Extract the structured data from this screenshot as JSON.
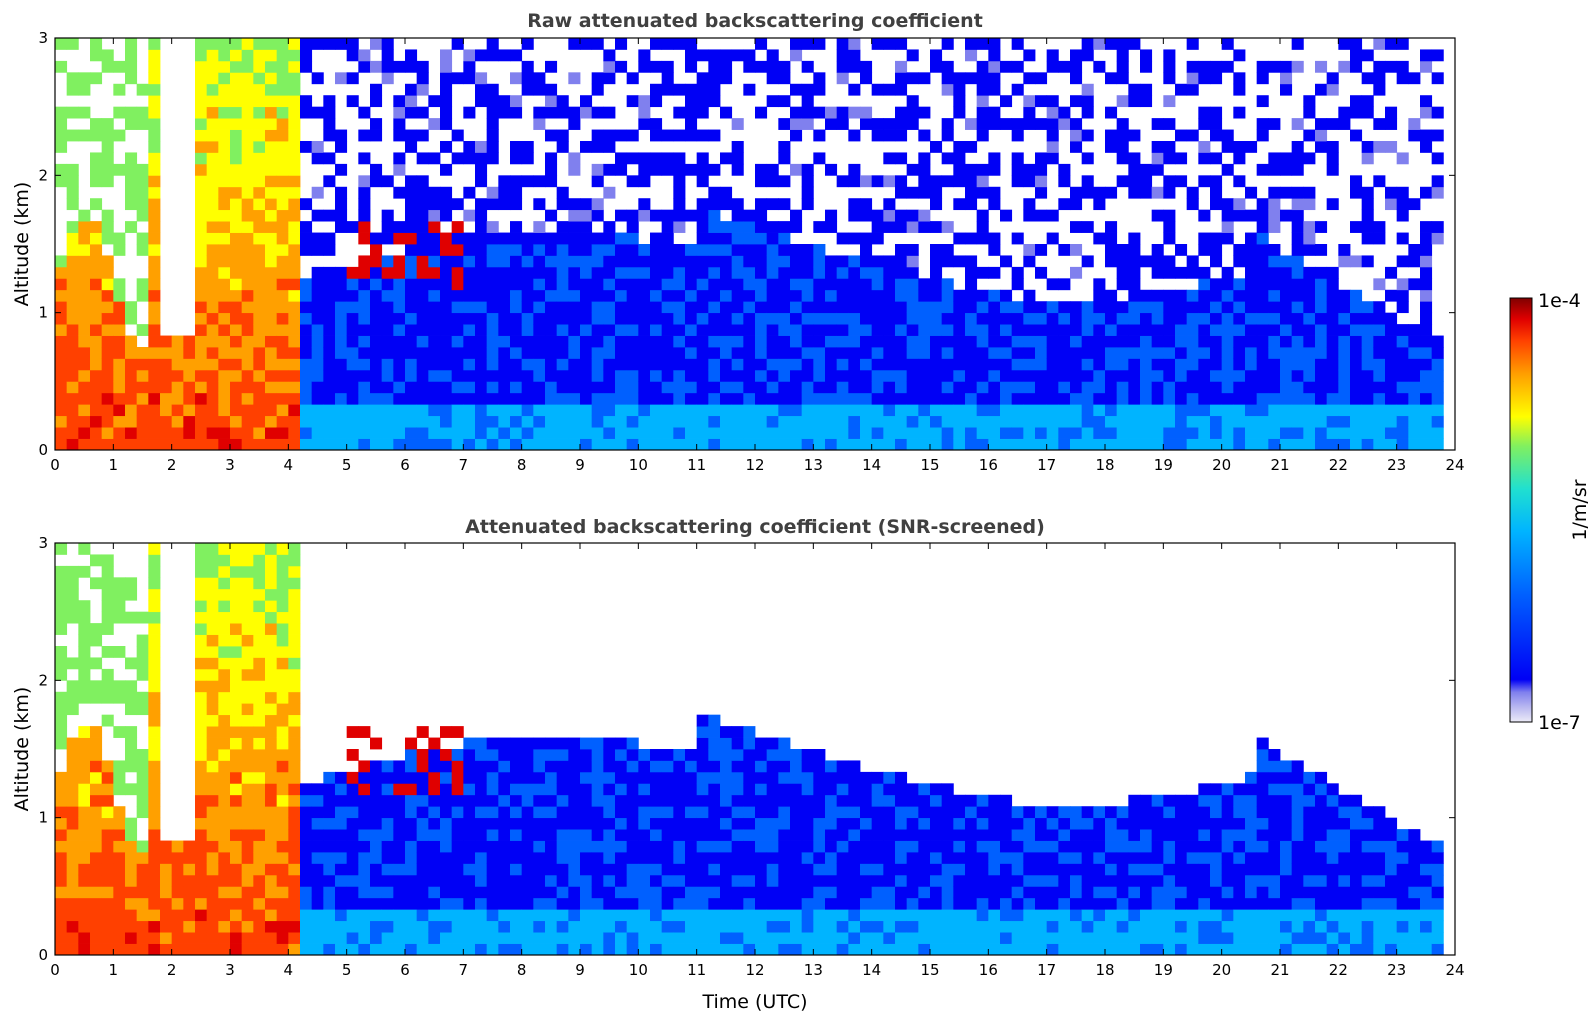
{
  "chart_data": [
    {
      "type": "heatmap",
      "title": "Raw attenuated backscattering coefficient",
      "xlabel": "",
      "ylabel": "Altitude (km)",
      "xlim": [
        0,
        24
      ],
      "ylim": [
        0,
        3
      ],
      "xticks": [
        "0",
        "1",
        "2",
        "3",
        "4",
        "5",
        "6",
        "7",
        "8",
        "9",
        "10",
        "11",
        "12",
        "13",
        "14",
        "15",
        "16",
        "17",
        "18",
        "19",
        "20",
        "21",
        "22",
        "23",
        "24"
      ],
      "yticks": [
        "0",
        "1",
        "2",
        "3"
      ],
      "screened": false
    },
    {
      "type": "heatmap",
      "title": "Attenuated backscattering coefficient (SNR-screened)",
      "xlabel": "Time (UTC)",
      "ylabel": "Altitude (km)",
      "xlim": [
        0,
        24
      ],
      "ylim": [
        0,
        3
      ],
      "xticks": [
        "0",
        "1",
        "2",
        "3",
        "4",
        "5",
        "6",
        "7",
        "8",
        "9",
        "10",
        "11",
        "12",
        "13",
        "14",
        "15",
        "16",
        "17",
        "18",
        "19",
        "20",
        "21",
        "22",
        "23",
        "24"
      ],
      "yticks": [
        "0",
        "1",
        "2",
        "3"
      ],
      "screened": true
    }
  ],
  "colorbar": {
    "label": "1/m/sr",
    "max_label": "1e-4",
    "min_label": "1e-7",
    "scale": "log",
    "colors": [
      "#ecebf7",
      "#b9b8f0",
      "#8080ee",
      "#0000f5",
      "#0060ff",
      "#00b4ff",
      "#20e0d0",
      "#80f060",
      "#ffff00",
      "#ffa000",
      "#ff4000",
      "#e00000",
      "#800000"
    ]
  }
}
